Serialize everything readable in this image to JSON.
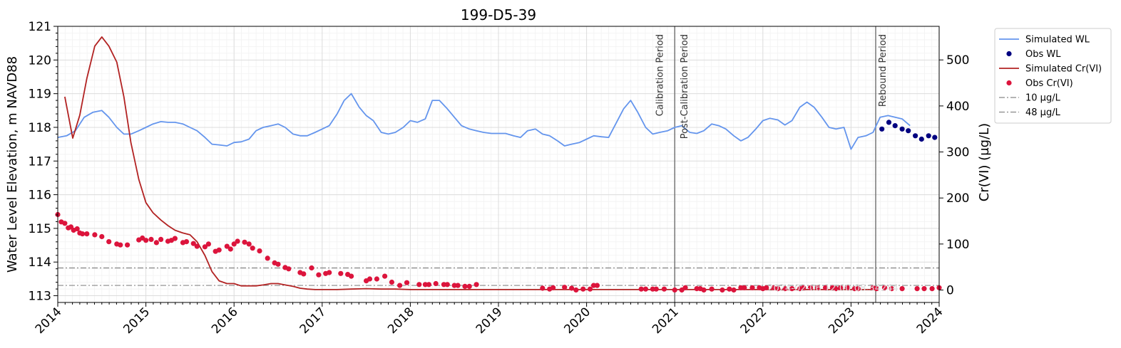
{
  "chart_data": {
    "type": "line",
    "title": "199-D5-39",
    "xlabel": "",
    "ylabel": "Water Level Elevation, m NAVD88",
    "y2label": "Cr(VI) (µg/L)",
    "xlim": [
      2014.0,
      2024.0
    ],
    "ylim": [
      112.8,
      121.0
    ],
    "y2lim": [
      -27,
      573
    ],
    "x_ticks": [
      "2014",
      "2015",
      "2016",
      "2017",
      "2018",
      "2019",
      "2020",
      "2021",
      "2022",
      "2023",
      "2024"
    ],
    "y_ticks": [
      113,
      114,
      115,
      116,
      117,
      118,
      119,
      120,
      121
    ],
    "y2_ticks": [
      0,
      100,
      200,
      300,
      400,
      500
    ],
    "grid": true,
    "legend_position": "outside-right",
    "annotations": [
      {
        "text": "Calibration Period",
        "x": 2020.98
      },
      {
        "text": "Post-Calibration Period",
        "x": 2021.0
      },
      {
        "text": "Rebound Period",
        "x": 2023.28
      }
    ],
    "vertical_lines": [
      2021.0,
      2023.28
    ],
    "watermark": "2024-02-06 12:00:08.34244",
    "series": [
      {
        "name": "Simulated WL",
        "axis": "left",
        "kind": "line",
        "color": "#6495ED",
        "x": [
          2014.0,
          2014.1,
          2014.2,
          2014.3,
          2014.4,
          2014.5,
          2014.58,
          2014.67,
          2014.75,
          2014.83,
          2014.92,
          2015.0,
          2015.08,
          2015.17,
          2015.25,
          2015.33,
          2015.42,
          2015.5,
          2015.58,
          2015.67,
          2015.75,
          2015.83,
          2015.92,
          2016.0,
          2016.08,
          2016.17,
          2016.25,
          2016.33,
          2016.42,
          2016.5,
          2016.58,
          2016.67,
          2016.75,
          2016.83,
          2016.92,
          2017.0,
          2017.08,
          2017.17,
          2017.25,
          2017.33,
          2017.42,
          2017.5,
          2017.58,
          2017.67,
          2017.75,
          2017.83,
          2017.92,
          2018.0,
          2018.08,
          2018.17,
          2018.25,
          2018.33,
          2018.42,
          2018.5,
          2018.58,
          2018.67,
          2018.75,
          2018.83,
          2018.92,
          2019.0,
          2019.08,
          2019.17,
          2019.25,
          2019.33,
          2019.42,
          2019.5,
          2019.58,
          2019.67,
          2019.75,
          2019.83,
          2019.92,
          2020.0,
          2020.08,
          2020.17,
          2020.25,
          2020.33,
          2020.42,
          2020.5,
          2020.58,
          2020.67,
          2020.75,
          2020.83,
          2020.92,
          2021.0,
          2021.08,
          2021.17,
          2021.25,
          2021.33,
          2021.42,
          2021.5,
          2021.58,
          2021.67,
          2021.75,
          2021.83,
          2021.92,
          2022.0,
          2022.08,
          2022.17,
          2022.25,
          2022.33,
          2022.42,
          2022.5,
          2022.58,
          2022.67,
          2022.75,
          2022.83,
          2022.92,
          2023.0,
          2023.08,
          2023.17,
          2023.25,
          2023.33,
          2023.42,
          2023.5,
          2023.58,
          2023.67
        ],
        "y": [
          117.7,
          117.75,
          117.9,
          118.3,
          118.45,
          118.5,
          118.3,
          118.0,
          117.8,
          117.8,
          117.9,
          118.0,
          118.1,
          118.17,
          118.15,
          118.15,
          118.1,
          118.0,
          117.9,
          117.7,
          117.5,
          117.48,
          117.45,
          117.55,
          117.57,
          117.65,
          117.9,
          118.0,
          118.05,
          118.1,
          118.0,
          117.8,
          117.75,
          117.75,
          117.85,
          117.95,
          118.05,
          118.4,
          118.8,
          119.0,
          118.6,
          118.35,
          118.2,
          117.85,
          117.8,
          117.85,
          118.0,
          118.2,
          118.15,
          118.25,
          118.8,
          118.8,
          118.55,
          118.3,
          118.05,
          117.95,
          117.9,
          117.85,
          117.82,
          117.82,
          117.82,
          117.75,
          117.7,
          117.9,
          117.95,
          117.8,
          117.75,
          117.6,
          117.45,
          117.5,
          117.55,
          117.65,
          117.75,
          117.72,
          117.7,
          118.1,
          118.55,
          118.8,
          118.45,
          118.0,
          117.8,
          117.85,
          117.9,
          118.0,
          118.05,
          117.85,
          117.82,
          117.9,
          118.1,
          118.05,
          117.95,
          117.75,
          117.6,
          117.7,
          117.95,
          118.2,
          118.27,
          118.22,
          118.07,
          118.2,
          118.6,
          118.75,
          118.6,
          118.3,
          118.0,
          117.95,
          118.0,
          117.35,
          117.7,
          117.75,
          117.85,
          118.3,
          118.35,
          118.3,
          118.25,
          118.05
        ]
      },
      {
        "name": "Obs WL",
        "axis": "left",
        "kind": "scatter",
        "color": "#000080",
        "x": [
          2023.35,
          2023.43,
          2023.5,
          2023.58,
          2023.65,
          2023.73,
          2023.8,
          2023.88,
          2023.95
        ],
        "y": [
          117.95,
          118.15,
          118.05,
          117.95,
          117.9,
          117.75,
          117.65,
          117.75,
          117.7
        ]
      },
      {
        "name": "Simulated Cr(VI)",
        "axis": "right",
        "kind": "line",
        "color": "#B22222",
        "x": [
          2014.08,
          2014.17,
          2014.25,
          2014.33,
          2014.42,
          2014.5,
          2014.58,
          2014.67,
          2014.75,
          2014.83,
          2014.92,
          2015.0,
          2015.08,
          2015.17,
          2015.25,
          2015.33,
          2015.42,
          2015.5,
          2015.58,
          2015.67,
          2015.75,
          2015.83,
          2015.92,
          2016.0,
          2016.08,
          2016.17,
          2016.25,
          2016.33,
          2016.42,
          2016.5,
          2016.58,
          2016.67,
          2016.75,
          2016.83,
          2016.92,
          2017.0,
          2017.17,
          2017.33,
          2017.5,
          2017.67,
          2017.83,
          2018.0,
          2018.5,
          2019.0,
          2019.5,
          2020.0,
          2020.5,
          2021.0,
          2021.5,
          2022.0,
          2022.5,
          2023.0,
          2023.28
        ],
        "y": [
          420,
          330,
          380,
          460,
          530,
          550,
          530,
          495,
          420,
          320,
          240,
          190,
          168,
          152,
          140,
          130,
          124,
          120,
          105,
          75,
          40,
          20,
          14,
          14,
          9,
          9,
          9,
          11,
          14,
          14,
          11,
          8,
          4,
          2,
          1,
          1,
          1,
          2,
          3,
          2,
          2,
          1,
          1,
          1,
          1,
          1,
          1,
          1,
          1,
          1,
          1,
          1,
          1
        ]
      },
      {
        "name": "Obs Cr(VI)",
        "axis": "right",
        "kind": "scatter",
        "color": "#DC143C",
        "x": [
          2014.0,
          2014.04,
          2014.08,
          2014.12,
          2014.15,
          2014.18,
          2014.22,
          2014.25,
          2014.28,
          2014.33,
          2014.42,
          2014.5,
          2014.58,
          2014.67,
          2014.71,
          2014.79,
          2014.92,
          2014.96,
          2015.0,
          2015.06,
          2015.12,
          2015.17,
          2015.25,
          2015.29,
          2015.33,
          2015.42,
          2015.46,
          2015.54,
          2015.58,
          2015.67,
          2015.71,
          2015.79,
          2015.83,
          2015.92,
          2015.96,
          2016.0,
          2016.04,
          2016.12,
          2016.17,
          2016.21,
          2016.29,
          2016.38,
          2016.46,
          2016.5,
          2016.58,
          2016.62,
          2016.75,
          2016.79,
          2016.88,
          2016.96,
          2017.04,
          2017.08,
          2017.21,
          2017.29,
          2017.33,
          2017.5,
          2017.54,
          2017.62,
          2017.71,
          2017.79,
          2017.88,
          2017.96,
          2018.1,
          2018.17,
          2018.21,
          2018.29,
          2018.38,
          2018.42,
          2018.5,
          2018.54,
          2018.62,
          2018.67,
          2018.75,
          2019.5,
          2019.58,
          2019.62,
          2019.75,
          2019.83,
          2019.88,
          2019.96,
          2020.04,
          2020.08,
          2020.12,
          2020.62,
          2020.67,
          2020.75,
          2020.79,
          2020.88,
          2021.0,
          2021.08,
          2021.12,
          2021.25,
          2021.29,
          2021.33,
          2021.42,
          2021.54,
          2021.62,
          2021.67,
          2021.75,
          2021.79,
          2021.88,
          2021.96,
          2022.0,
          2022.04,
          2022.12,
          2022.17,
          2022.25,
          2022.33,
          2022.42,
          2022.46,
          2022.54,
          2022.62,
          2022.71,
          2022.79,
          2022.83,
          2022.88,
          2022.96,
          2023.04,
          2023.08,
          2023.25,
          2023.29,
          2023.38,
          2023.46,
          2023.58,
          2023.75,
          2023.83,
          2023.92,
          2024.0
        ],
        "y": [
          164,
          148,
          145,
          135,
          137,
          130,
          133,
          124,
          122,
          122,
          120,
          116,
          105,
          100,
          98,
          98,
          109,
          113,
          108,
          110,
          103,
          110,
          106,
          108,
          112,
          103,
          105,
          101,
          95,
          94,
          100,
          84,
          87,
          95,
          89,
          100,
          106,
          104,
          100,
          91,
          85,
          69,
          59,
          56,
          49,
          46,
          38,
          35,
          48,
          33,
          36,
          38,
          36,
          34,
          30,
          20,
          24,
          24,
          30,
          17,
          10,
          16,
          12,
          12,
          12,
          14,
          12,
          12,
          10,
          10,
          8,
          8,
          12,
          4,
          2,
          5,
          6,
          4,
          0,
          2,
          2,
          10,
          10,
          2,
          2,
          2,
          2,
          2,
          0,
          0,
          5,
          3,
          3,
          0,
          2,
          0,
          2,
          0,
          5,
          5,
          5,
          5,
          3,
          5,
          5,
          3,
          3,
          3,
          3,
          5,
          5,
          5,
          5,
          5,
          3,
          5,
          5,
          3,
          3,
          5,
          3,
          5,
          3,
          3,
          3,
          3,
          3,
          5
        ]
      },
      {
        "name": "10 µg/L",
        "axis": "right",
        "kind": "hline",
        "color": "#888888",
        "y": 10
      },
      {
        "name": "48 µg/L",
        "axis": "right",
        "kind": "hline",
        "color": "#888888",
        "y": 48
      }
    ]
  }
}
